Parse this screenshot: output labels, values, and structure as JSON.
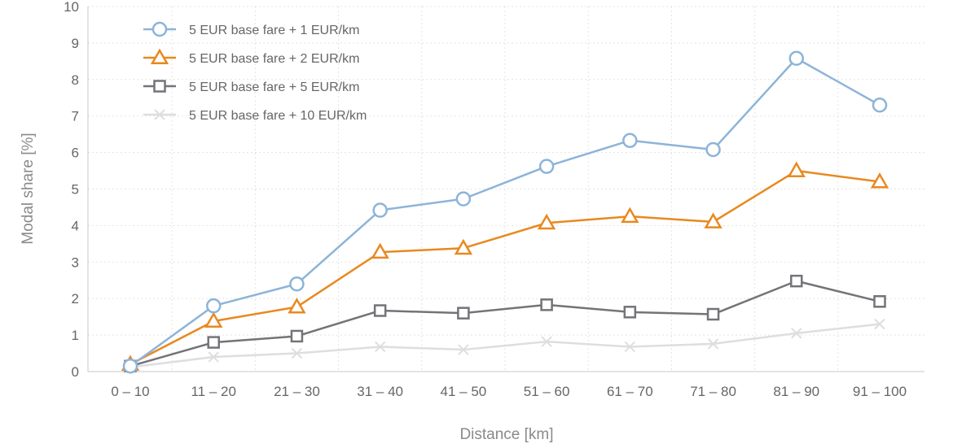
{
  "chart_data": {
    "type": "line",
    "title": "",
    "xlabel": "Distance [km]",
    "ylabel": "Modal share [%]",
    "ylim": [
      0,
      10
    ],
    "yticks": [
      "0",
      "1",
      "2",
      "3",
      "4",
      "5",
      "6",
      "7",
      "8",
      "9",
      "10"
    ],
    "grid": true,
    "legend_position": "top-left",
    "categories": [
      "0 – 10",
      "11 – 20",
      "21 – 30",
      "31 – 40",
      "41 – 50",
      "51 – 60",
      "61 – 70",
      "71 – 80",
      "81 – 90",
      "91 – 100"
    ],
    "series": [
      {
        "name": "5 EUR base fare + 1 EUR/km",
        "color": "#8db4d9",
        "marker": "circle",
        "values": [
          0.15,
          1.8,
          2.4,
          4.42,
          4.73,
          5.62,
          6.33,
          6.08,
          8.58,
          7.3
        ]
      },
      {
        "name": "5 EUR base fare + 2 EUR/km",
        "color": "#e8891f",
        "marker": "triangle",
        "values": [
          0.2,
          1.38,
          1.77,
          3.27,
          3.38,
          4.07,
          4.25,
          4.1,
          5.5,
          5.2
        ]
      },
      {
        "name": "5 EUR base fare + 5 EUR/km",
        "color": "#747378",
        "marker": "square",
        "values": [
          0.15,
          0.8,
          0.97,
          1.67,
          1.6,
          1.83,
          1.63,
          1.57,
          2.48,
          1.92
        ]
      },
      {
        "name": "5 EUR base fare + 10 EUR/km",
        "color": "#dedede",
        "marker": "x",
        "values": [
          0.12,
          0.4,
          0.5,
          0.68,
          0.6,
          0.82,
          0.68,
          0.76,
          1.05,
          1.3
        ]
      }
    ]
  }
}
